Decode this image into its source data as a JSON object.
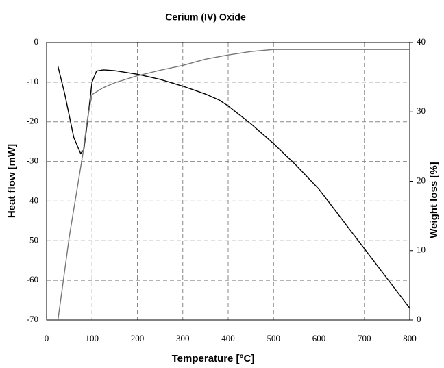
{
  "chart_data": {
    "type": "line",
    "title": "Cerium (IV) Oxide",
    "x_label": "Temperature [°C]",
    "y_label": "Heat flow [mW]",
    "y2_label": "Weight loss [%]",
    "xlim": [
      0,
      800
    ],
    "xticks": [
      0,
      100,
      200,
      300,
      400,
      500,
      600,
      700,
      800
    ],
    "ylim": [
      -70,
      0
    ],
    "yticks": [
      0,
      -10,
      -20,
      -30,
      -40,
      -50,
      -60,
      -70
    ],
    "y2lim": [
      0,
      40
    ],
    "y2ticks": [
      0,
      10,
      20,
      30,
      40
    ],
    "grid": true,
    "series": [
      {
        "color": "#000000",
        "x": [
          25,
          40,
          60,
          75,
          82,
          90,
          100,
          110,
          125,
          150,
          200,
          250,
          300,
          350,
          380,
          400,
          450,
          500,
          550,
          600,
          650,
          700,
          750,
          800
        ],
        "values": [
          -6,
          -13,
          -24,
          -28,
          -27,
          -20,
          -10,
          -7.2,
          -6.9,
          -7.1,
          -8,
          -9.3,
          -11,
          -13,
          -14.5,
          -16,
          -20.5,
          -25.5,
          -31,
          -37,
          -44.5,
          -52,
          -59.5,
          -67
        ]
      },
      {
        "color": "#777777",
        "axis": "y2",
        "x": [
          25,
          50,
          70,
          80,
          90,
          100,
          125,
          150,
          200,
          250,
          300,
          350,
          400,
          450,
          500,
          600,
          700,
          800
        ],
        "values": [
          0,
          12,
          20,
          24,
          29,
          32.5,
          33.5,
          34.2,
          35.2,
          36,
          36.7,
          37.6,
          38.2,
          38.7,
          39,
          39,
          39,
          39
        ]
      }
    ]
  }
}
